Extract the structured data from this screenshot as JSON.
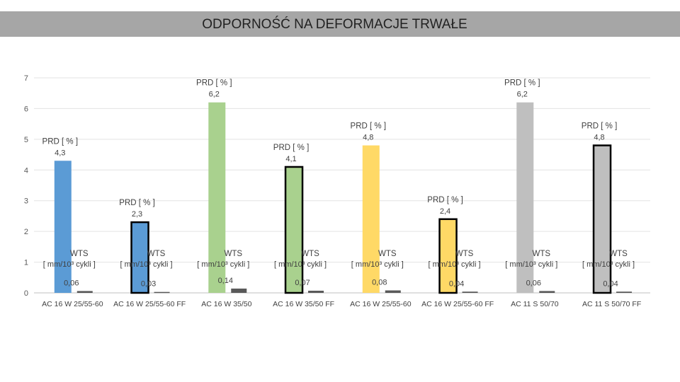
{
  "title": "ODPORNOŚĆ NA DEFORMACJE TRWAŁE",
  "chart_data": {
    "type": "bar",
    "title": "ODPORNOŚĆ NA DEFORMACJE TRWAŁE",
    "xlabel": "",
    "ylabel": "",
    "ylim": [
      0,
      7
    ],
    "yticks": [
      "0",
      "1",
      "2",
      "3",
      "4",
      "5",
      "6",
      "7"
    ],
    "grid": true,
    "legend": "none",
    "categories": [
      "AC 16 W 25/55-60",
      "AC 16 W 25/55-60 FF",
      "AC 16 W 35/50",
      "AC 16 W 35/50 FF",
      "AC 16 W 25/55-60",
      "AC 16 W 25/55-60 FF",
      "AC 11 S 50/70",
      "AC 11 S 50/70 FF"
    ],
    "series": [
      {
        "name": "PRD [ % ]",
        "values": [
          4.3,
          2.3,
          6.2,
          4.1,
          4.8,
          2.4,
          6.2,
          4.8
        ],
        "labels": [
          "4,3",
          "2,3",
          "6,2",
          "4,1",
          "4,8",
          "2,4",
          "6,2",
          "4,8"
        ],
        "colors": [
          "#5b9bd5",
          "#5b9bd5",
          "#a9d18e",
          "#a9d18e",
          "#ffd966",
          "#ffd966",
          "#bfbfbf",
          "#bfbfbf"
        ],
        "outlined": [
          false,
          true,
          false,
          true,
          false,
          true,
          false,
          true
        ]
      },
      {
        "name": "WTS [ mm/10³ cykli ]",
        "name_line1": "WTS",
        "name_line2": "[ mm/10³ cykli ]",
        "values": [
          0.06,
          0.03,
          0.14,
          0.07,
          0.08,
          0.04,
          0.06,
          0.04
        ],
        "labels": [
          "0,06",
          "0,03",
          "0,14",
          "0,07",
          "0,08",
          "0,04",
          "0,06",
          "0,04"
        ],
        "color": "#595959"
      }
    ]
  }
}
